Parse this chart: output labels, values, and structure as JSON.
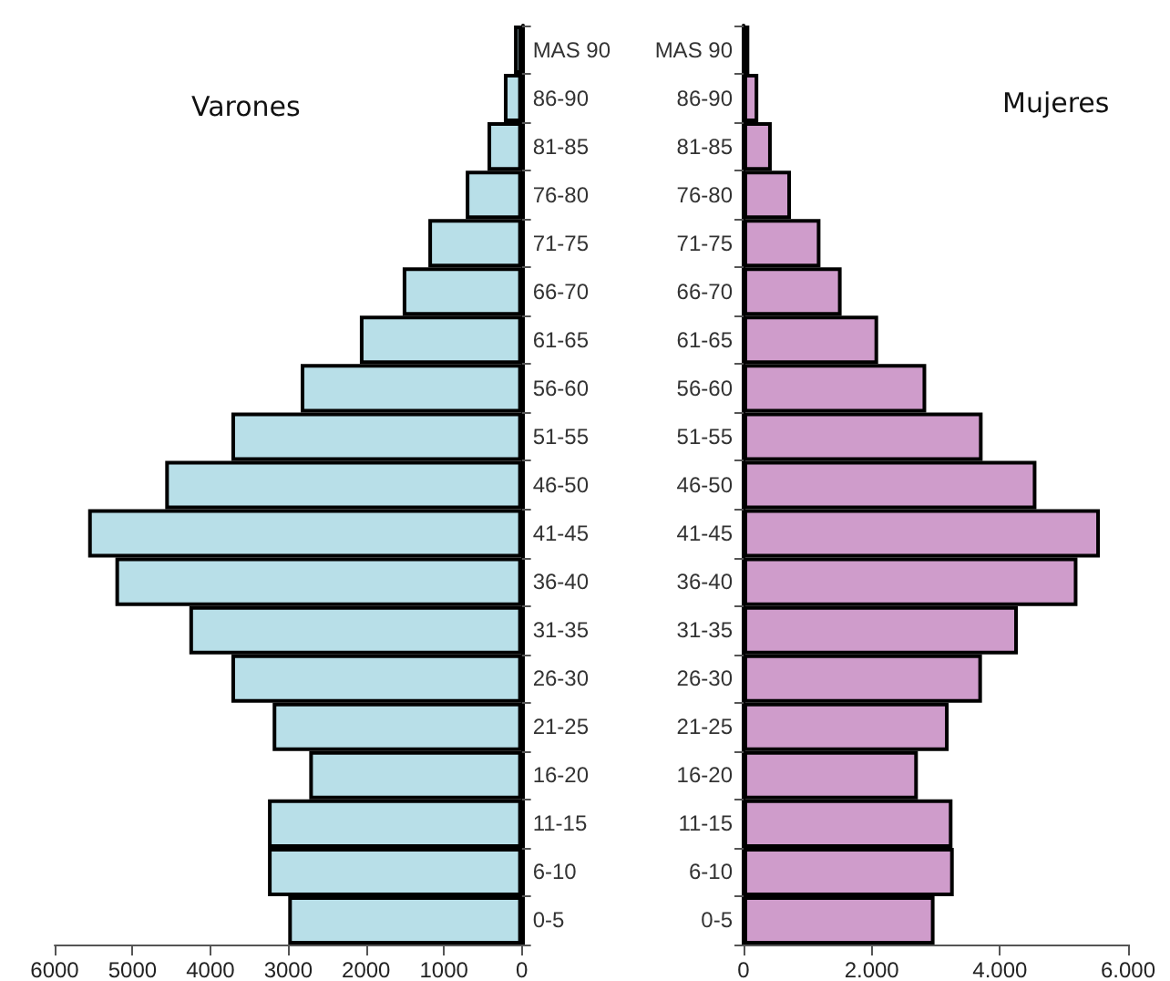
{
  "chart_data": [
    {
      "type": "bar",
      "orientation": "horizontal",
      "title": "Varones",
      "categories": [
        "MAS 90",
        "86-90",
        "81-85",
        "76-80",
        "71-75",
        "66-70",
        "61-65",
        "56-60",
        "51-55",
        "46-50",
        "41-45",
        "36-40",
        "31-35",
        "26-30",
        "21-25",
        "16-20",
        "11-15",
        "6-10",
        "0-5"
      ],
      "series": [
        {
          "color": "#b8dfe8",
          "values": [
            100,
            230,
            440,
            720,
            1200,
            1530,
            2080,
            2840,
            3730,
            4580,
            5570,
            5220,
            4270,
            3730,
            3200,
            2730,
            3260,
            3260,
            3000
          ]
        }
      ],
      "xlim": [
        6000,
        0
      ],
      "xticks": [
        6000,
        5000,
        4000,
        3000,
        2000,
        1000,
        0
      ],
      "grid": false
    },
    {
      "type": "bar",
      "orientation": "horizontal",
      "title": "Mujeres",
      "categories": [
        "MAS 90",
        "86-90",
        "81-85",
        "76-80",
        "71-75",
        "66-70",
        "61-65",
        "56-60",
        "51-55",
        "46-50",
        "41-45",
        "36-40",
        "31-35",
        "26-30",
        "21-25",
        "16-20",
        "11-15",
        "6-10",
        "0-5"
      ],
      "series": [
        {
          "color": "#cf9ccb",
          "values": [
            90,
            230,
            440,
            740,
            1200,
            1530,
            2100,
            2850,
            3730,
            4570,
            5560,
            5210,
            4280,
            3720,
            3200,
            2720,
            3260,
            3280,
            2980
          ]
        }
      ],
      "xlim": [
        0,
        6000
      ],
      "xticks": [
        0,
        {
          "value": 2000,
          "label": "2.000"
        },
        {
          "value": 4000,
          "label": "4.000"
        },
        {
          "value": 6000,
          "label": "6.000"
        }
      ],
      "grid": false
    }
  ]
}
